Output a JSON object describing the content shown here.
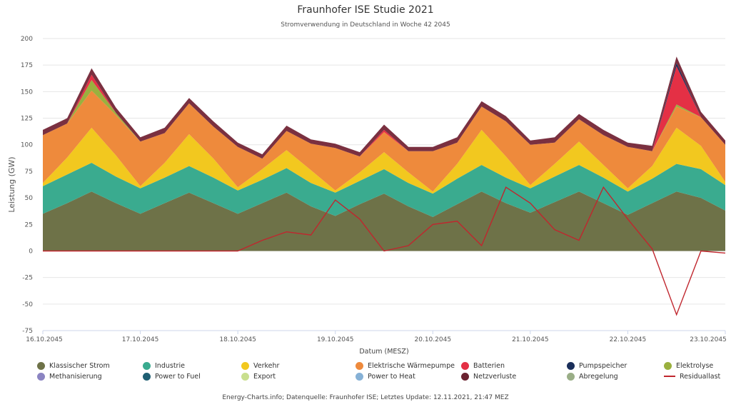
{
  "header": {
    "title": "Fraunhofer ISE Studie 2021",
    "subtitle": "Stromverwendung in Deutschland in Woche 42 2045"
  },
  "footer": "Energy-Charts.info; Datenquelle: Fraunhofer ISE; Letztes Update: 12.11.2021, 21:47 MEZ",
  "chart_data": {
    "type": "area",
    "title": "Fraunhofer ISE Studie 2021",
    "subtitle": "Stromverwendung in Deutschland in Woche 42 2045",
    "xlabel": "Datum (MESZ)",
    "ylabel": "Leistung (GW)",
    "ylim": [
      -75,
      200
    ],
    "yticks": [
      200,
      175,
      150,
      125,
      100,
      75,
      50,
      25,
      0,
      -25,
      -50,
      -75
    ],
    "xlim": [
      0,
      7
    ],
    "xticks": [
      "16.10.2045",
      "17.10.2045",
      "18.10.2045",
      "19.10.2045",
      "20.10.2045",
      "21.10.2045",
      "22.10.2045",
      "23.10.2045"
    ],
    "grid": true,
    "legend_position": "bottom",
    "x_unit": "Tage ab 16.10.2045 00:00",
    "x": [
      0,
      0.25,
      0.5,
      0.75,
      1,
      1.25,
      1.5,
      1.75,
      2,
      2.25,
      2.5,
      2.75,
      3,
      3.25,
      3.5,
      3.75,
      4,
      4.25,
      4.5,
      4.75,
      5,
      5.25,
      5.5,
      5.75,
      6,
      6.25,
      6.5,
      6.75,
      7
    ],
    "stacked_series": [
      {
        "name": "Klassischer Strom",
        "color": "#6e7248",
        "values": [
          35,
          45,
          56,
          45,
          35,
          45,
          55,
          45,
          35,
          45,
          55,
          42,
          33,
          44,
          54,
          42,
          32,
          44,
          56,
          45,
          36,
          46,
          56,
          45,
          34,
          45,
          56,
          50,
          38
        ]
      },
      {
        "name": "Industrie",
        "color": "#3aab8f",
        "values": [
          26,
          27,
          27,
          25,
          24,
          24,
          25,
          24,
          22,
          22,
          23,
          22,
          22,
          22,
          23,
          22,
          22,
          24,
          25,
          24,
          23,
          24,
          25,
          24,
          22,
          23,
          26,
          27,
          24
        ]
      },
      {
        "name": "Verkehr",
        "color": "#f2c81f",
        "values": [
          3,
          16,
          33,
          20,
          2,
          14,
          30,
          18,
          3,
          10,
          17,
          12,
          2,
          8,
          16,
          10,
          2,
          14,
          33,
          20,
          3,
          12,
          22,
          12,
          3,
          12,
          34,
          22,
          3
        ]
      },
      {
        "name": "Elektrische Wärmepumpe",
        "color": "#ee8a3c",
        "values": [
          45,
          32,
          35,
          38,
          42,
          28,
          29,
          30,
          38,
          10,
          18,
          25,
          40,
          15,
          19,
          20,
          38,
          20,
          22,
          33,
          38,
          20,
          21,
          28,
          39,
          14,
          20,
          27,
          35
        ]
      },
      {
        "name": "Elektrolyse",
        "color": "#9ab03e",
        "values": [
          0,
          0,
          10,
          2,
          0,
          0,
          0,
          0,
          0,
          0,
          0,
          0,
          0,
          0,
          0,
          0,
          0,
          0,
          0,
          0,
          0,
          0,
          0,
          0,
          0,
          0,
          2,
          0,
          0
        ]
      },
      {
        "name": "Batterien",
        "color": "#e43045",
        "values": [
          0,
          0,
          5,
          0,
          0,
          0,
          0,
          0,
          0,
          0,
          0,
          0,
          0,
          0,
          2,
          0,
          0,
          0,
          0,
          0,
          0,
          0,
          0,
          0,
          0,
          0,
          36,
          0,
          0
        ]
      },
      {
        "name": "Pumpspeicher",
        "color": "#1a2e5a",
        "values": [
          0,
          0,
          0,
          0,
          0,
          0,
          0,
          0,
          0,
          0,
          0,
          0,
          0,
          0,
          0,
          0,
          0,
          0,
          0,
          0,
          0,
          0,
          0,
          0,
          0,
          0,
          3,
          0,
          0
        ]
      },
      {
        "name": "Netzverluste",
        "color": "#7a3040",
        "values": [
          5,
          5,
          6,
          5,
          4,
          5,
          5,
          5,
          4,
          4,
          5,
          4,
          4,
          4,
          5,
          4,
          4,
          5,
          5,
          5,
          4,
          5,
          5,
          5,
          4,
          5,
          6,
          5,
          4
        ]
      }
    ],
    "line_series": [
      {
        "name": "Residuallast",
        "color": "#c0262e",
        "values": [
          0,
          0,
          0,
          0,
          0,
          0,
          0,
          0,
          0,
          10,
          18,
          15,
          48,
          30,
          0,
          5,
          25,
          28,
          5,
          60,
          45,
          20,
          10,
          60,
          30,
          2,
          -60,
          0,
          -2
        ]
      }
    ],
    "legend": [
      {
        "name": "Klassischer Strom",
        "color": "#6e7248",
        "kind": "area"
      },
      {
        "name": "Industrie",
        "color": "#3aab8f",
        "kind": "area"
      },
      {
        "name": "Verkehr",
        "color": "#f2c81f",
        "kind": "area"
      },
      {
        "name": "Elektrische Wärmepumpe",
        "color": "#ee8a3c",
        "kind": "area"
      },
      {
        "name": "Batterien",
        "color": "#e43045",
        "kind": "area"
      },
      {
        "name": "Pumpspeicher",
        "color": "#1a2e5a",
        "kind": "area"
      },
      {
        "name": "Elektrolyse",
        "color": "#9ab03e",
        "kind": "area"
      },
      {
        "name": "Methanisierung",
        "color": "#8b84c2",
        "kind": "area"
      },
      {
        "name": "Power to Fuel",
        "color": "#1f5f73",
        "kind": "area"
      },
      {
        "name": "Export",
        "color": "#c9df8e",
        "kind": "area"
      },
      {
        "name": "Power to Heat",
        "color": "#86b1d6",
        "kind": "area"
      },
      {
        "name": "Netzverluste",
        "color": "#6b2230",
        "kind": "area"
      },
      {
        "name": "Abregelung",
        "color": "#9aae87",
        "kind": "area"
      },
      {
        "name": "Residuallast",
        "color": "#c0262e",
        "kind": "line"
      }
    ]
  }
}
